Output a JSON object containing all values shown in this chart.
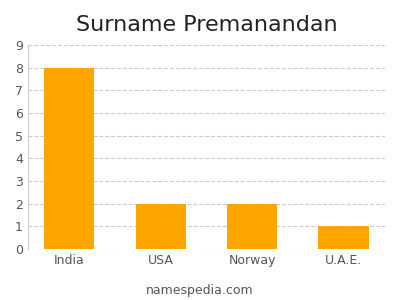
{
  "title": "Surname Premanandan",
  "categories": [
    "India",
    "USA",
    "Norway",
    "U.A.E."
  ],
  "values": [
    8,
    2,
    2,
    1
  ],
  "bar_color": "#FFA500",
  "ylim": [
    0,
    9
  ],
  "yticks": [
    0,
    1,
    2,
    3,
    4,
    5,
    6,
    7,
    8,
    9
  ],
  "background_color": "#ffffff",
  "grid_color": "#cccccc",
  "title_fontsize": 16,
  "tick_fontsize": 9,
  "footer_text": "namespedia.com",
  "footer_fontsize": 9
}
